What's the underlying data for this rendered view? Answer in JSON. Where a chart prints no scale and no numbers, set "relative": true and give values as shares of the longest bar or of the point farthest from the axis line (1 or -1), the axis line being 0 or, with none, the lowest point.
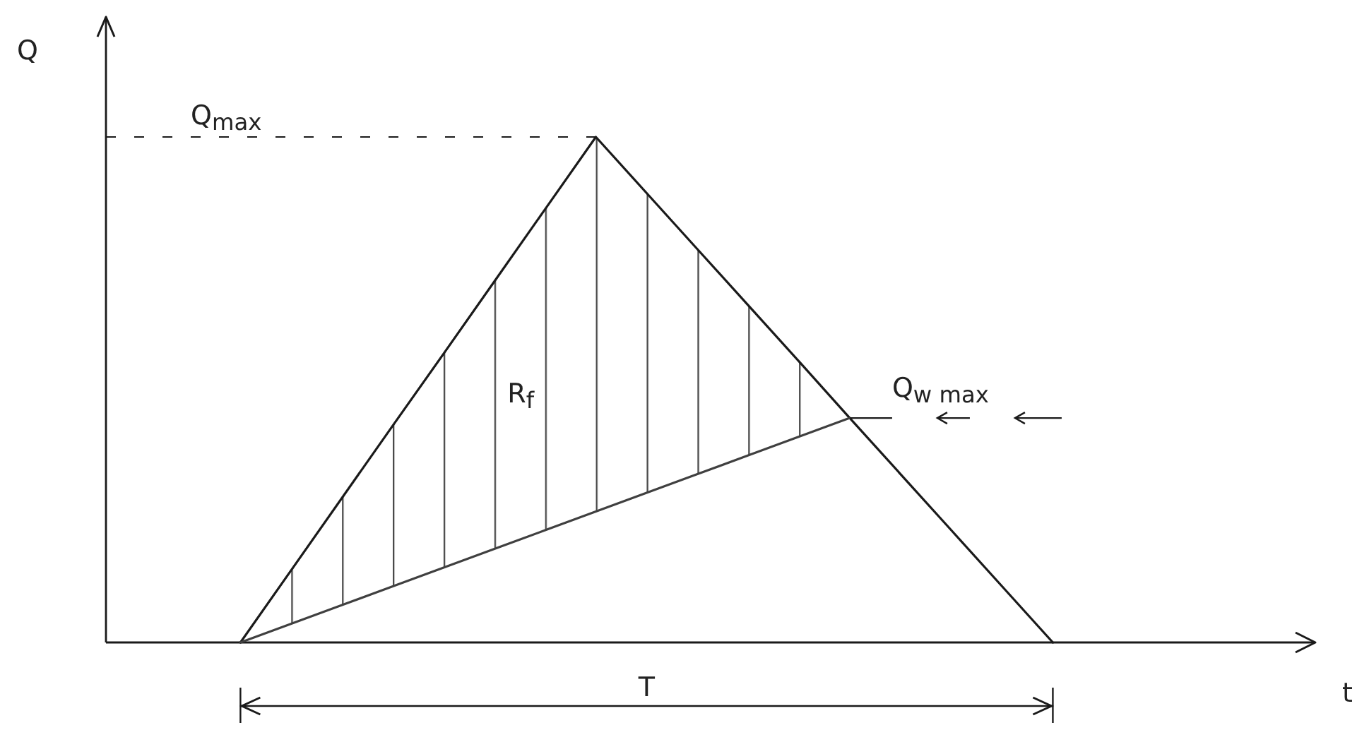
{
  "chart_data": {
    "type": "line",
    "relative": true,
    "categories": [
      null,
      null,
      null,
      null,
      null,
      null,
      null,
      null,
      null,
      null,
      null,
      null,
      null,
      null,
      null,
      null,
      null
    ],
    "series": [
      {
        "color": "#1a1a1a",
        "values": [
          0,
          0.143,
          0.286,
          0.429,
          0.571,
          0.714,
          0.857,
          1,
          0.889,
          0.778,
          0.667,
          0.556,
          0.444,
          0.333,
          0.222,
          0.111,
          0
        ]
      },
      {
        "color": "#404040",
        "values": [
          0,
          0.037,
          0.074,
          0.111,
          0.148,
          0.185,
          0.222,
          0.259,
          0.296,
          0.333,
          0.37,
          0.407,
          0.444,
          null,
          null,
          null,
          null
        ],
        "lower": [
          0,
          0.037,
          0.074,
          0.111,
          0.148,
          0.185,
          0.222,
          0.259,
          0.296,
          0.333,
          0.37,
          0.407,
          0.444,
          null,
          null,
          null,
          null
        ],
        "upper": [
          0,
          0.143,
          0.286,
          0.429,
          0.571,
          0.714,
          0.857,
          1,
          0.889,
          0.778,
          0.667,
          0.556,
          0.444,
          null,
          null,
          null,
          null
        ]
      }
    ],
    "ref_lines": [
      {
        "axis": "y",
        "value": 1,
        "label": "Q$_{max}$",
        "line_style": "dashed",
        "color": "#1a1a1a"
      }
    ],
    "annotations": [
      "R$_{f}$",
      {
        "text": "Q$_{w max}$",
        "y": 0.444
      },
      "T",
      "Q",
      "t"
    ]
  }
}
